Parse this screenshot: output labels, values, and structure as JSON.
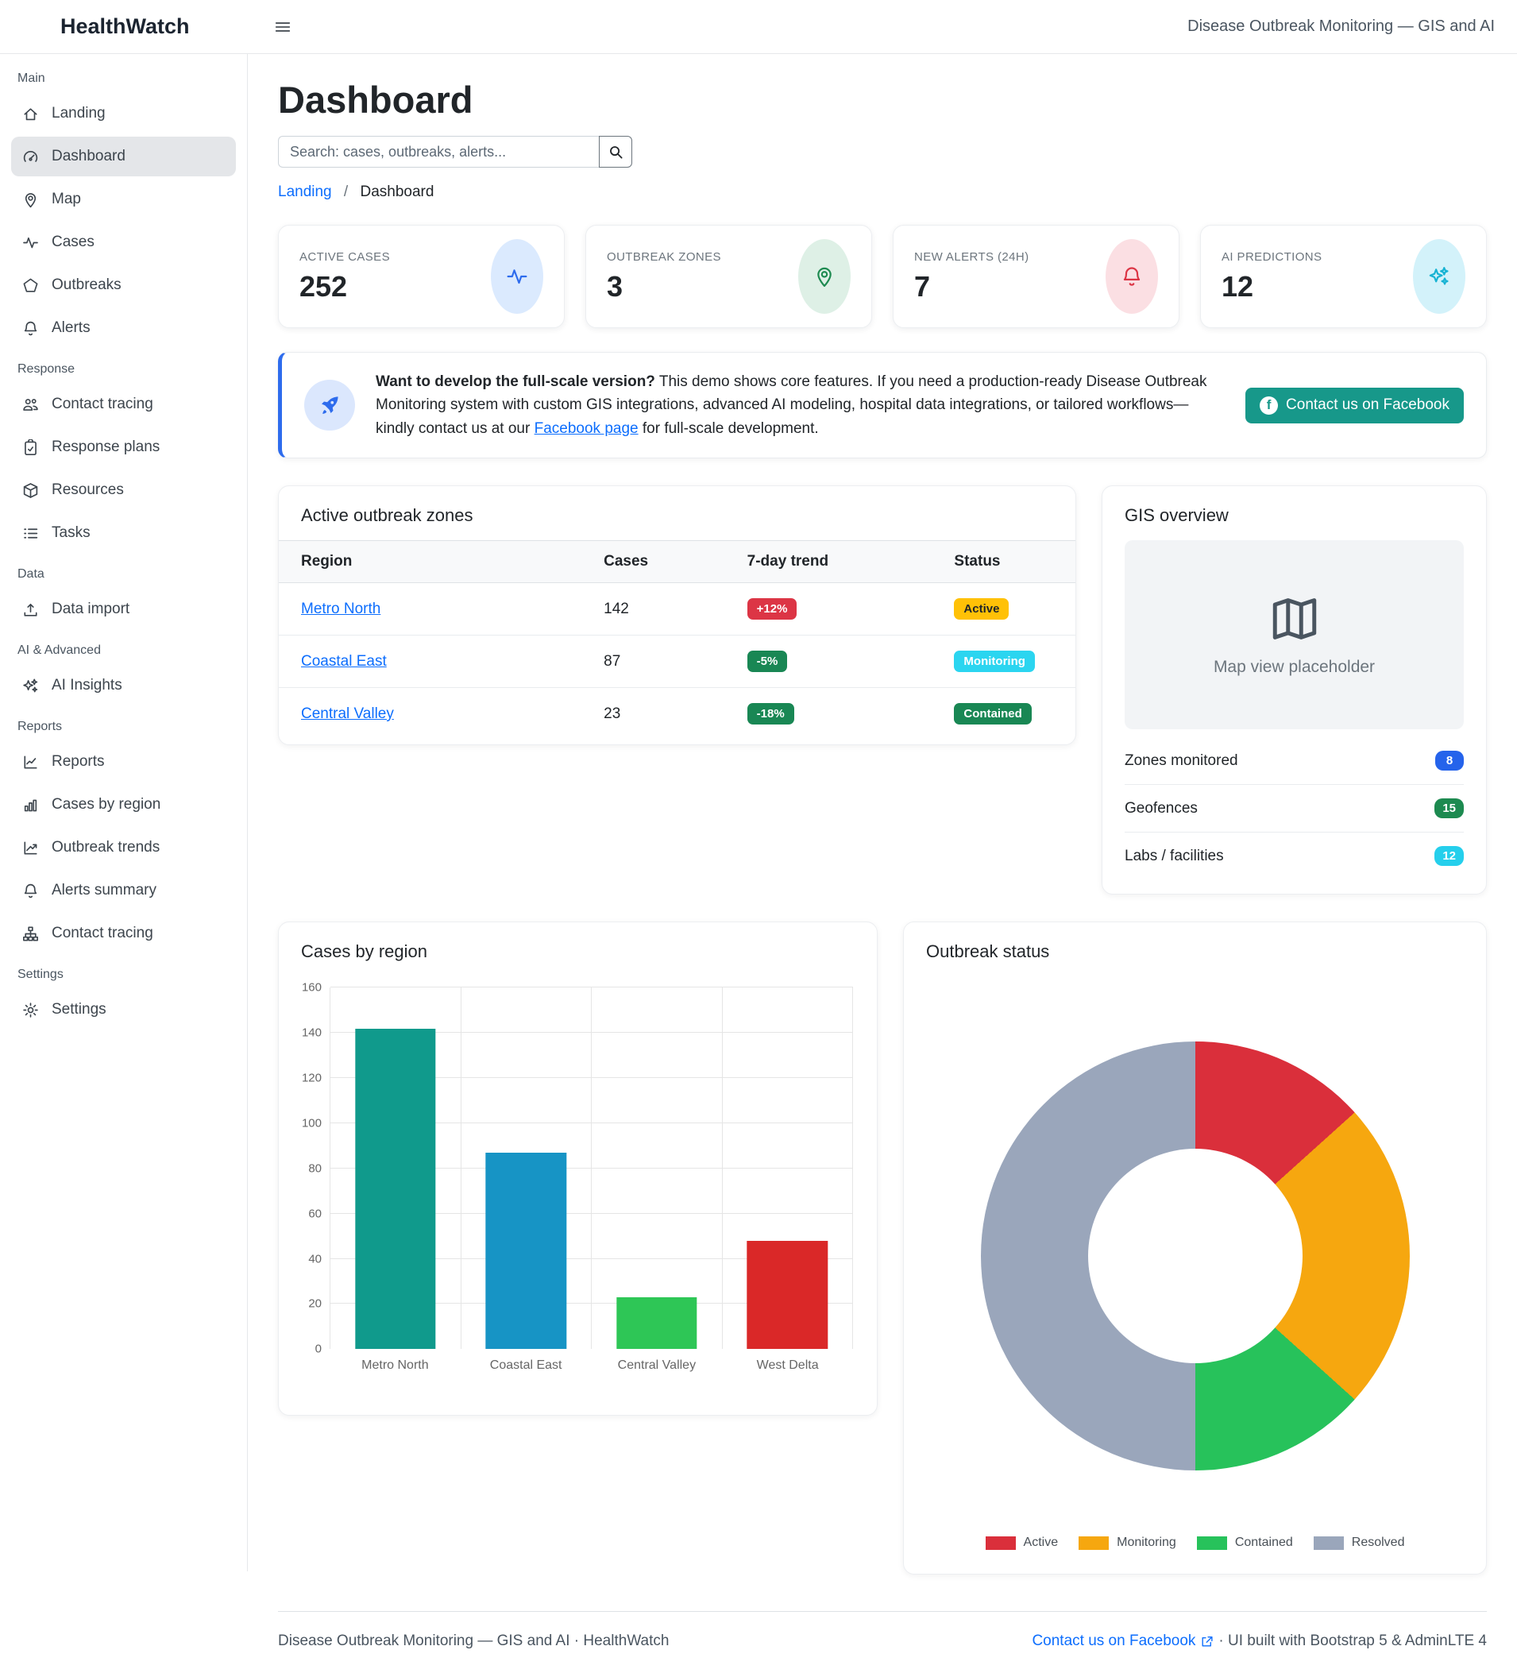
{
  "header": {
    "brand": "HealthWatch",
    "subtitle": "Disease Outbreak Monitoring — GIS and AI"
  },
  "page": {
    "title": "Dashboard",
    "search_placeholder": "Search: cases, outbreaks, alerts...",
    "breadcrumb_link": "Landing",
    "breadcrumb_sep": "/",
    "breadcrumb_current": "Dashboard"
  },
  "sidebar": {
    "sections": [
      {
        "label": "Main",
        "items": [
          {
            "label": "Landing",
            "icon": "house-icon",
            "active": false
          },
          {
            "label": "Dashboard",
            "icon": "speedometer-icon",
            "active": true
          },
          {
            "label": "Map",
            "icon": "geo-pin-icon",
            "active": false
          },
          {
            "label": "Cases",
            "icon": "activity-icon",
            "active": false
          },
          {
            "label": "Outbreaks",
            "icon": "pentagon-icon",
            "active": false
          },
          {
            "label": "Alerts",
            "icon": "bell-icon",
            "active": false
          }
        ]
      },
      {
        "label": "Response",
        "items": [
          {
            "label": "Contact tracing",
            "icon": "people-icon",
            "active": false
          },
          {
            "label": "Response plans",
            "icon": "clipboard-check-icon",
            "active": false
          },
          {
            "label": "Resources",
            "icon": "box-icon",
            "active": false
          },
          {
            "label": "Tasks",
            "icon": "list-check-icon",
            "active": false
          }
        ]
      },
      {
        "label": "Data",
        "items": [
          {
            "label": "Data import",
            "icon": "upload-icon",
            "active": false
          }
        ]
      },
      {
        "label": "AI & Advanced",
        "items": [
          {
            "label": "AI Insights",
            "icon": "sparkles-icon",
            "active": false
          }
        ]
      },
      {
        "label": "Reports",
        "items": [
          {
            "label": "Reports",
            "icon": "graph-icon",
            "active": false
          },
          {
            "label": "Cases by region",
            "icon": "bar-chart-icon",
            "active": false
          },
          {
            "label": "Outbreak trends",
            "icon": "trend-up-icon",
            "active": false
          },
          {
            "label": "Alerts summary",
            "icon": "bell-icon",
            "active": false
          },
          {
            "label": "Contact tracing",
            "icon": "diagram-icon",
            "active": false
          }
        ]
      },
      {
        "label": "Settings",
        "items": [
          {
            "label": "Settings",
            "icon": "gear-icon",
            "active": false
          }
        ]
      }
    ]
  },
  "stats": [
    {
      "label": "ACTIVE CASES",
      "value": "252",
      "icon": "activity-icon",
      "accent": "#2e6ced",
      "bubble": "#dbeafe"
    },
    {
      "label": "OUTBREAK ZONES",
      "value": "3",
      "icon": "geo-pin-icon",
      "accent": "#1d8a50",
      "bubble": "#def0e6"
    },
    {
      "label": "NEW ALERTS (24H)",
      "value": "7",
      "icon": "bell-icon",
      "accent": "#dc3545",
      "bubble": "#fbdfe3"
    },
    {
      "label": "AI PREDICTIONS",
      "value": "12",
      "icon": "sparkles-icon",
      "accent": "#17b3d3",
      "bubble": "#d3f2fa"
    }
  ],
  "banner": {
    "lead": "Want to develop the full-scale version?",
    "text1": " This demo shows core features. If you need a production-ready Disease Outbreak Monitoring system with custom GIS integrations, advanced AI modeling, hospital data integrations, or tailored workflows— kindly contact us at our ",
    "link_text": "Facebook page",
    "text2": " for full-scale development.",
    "button": "Contact us on Facebook",
    "button_color": "#17988a"
  },
  "zones_table": {
    "title": "Active outbreak zones",
    "columns": [
      "Region",
      "Cases",
      "7-day trend",
      "Status"
    ],
    "rows": [
      {
        "region": "Metro North",
        "cases": "142",
        "trend": "+12%",
        "trend_color": "#dc3545",
        "status": "Active",
        "status_color": "#ffc107",
        "status_text_color": "#212529"
      },
      {
        "region": "Coastal East",
        "cases": "87",
        "trend": "-5%",
        "trend_color": "#198754",
        "status": "Monitoring",
        "status_color": "#2bd5f0",
        "status_text_color": "#ffffff"
      },
      {
        "region": "Central Valley",
        "cases": "23",
        "trend": "-18%",
        "trend_color": "#198754",
        "status": "Contained",
        "status_color": "#198754",
        "status_text_color": "#ffffff"
      }
    ]
  },
  "gis": {
    "title": "GIS overview",
    "placeholder": "Map view placeholder",
    "items": [
      {
        "label": "Zones monitored",
        "value": "8",
        "color": "#2563eb"
      },
      {
        "label": "Geofences",
        "value": "15",
        "color": "#1d8a50"
      },
      {
        "label": "Labs / facilities",
        "value": "12",
        "color": "#25cfec"
      }
    ]
  },
  "chart_data": [
    {
      "type": "bar",
      "title": "Cases by region",
      "categories": [
        "Metro North",
        "Coastal East",
        "Central Valley",
        "West Delta"
      ],
      "values": [
        142,
        87,
        23,
        48
      ],
      "colors": [
        "#109a8c",
        "#1794c5",
        "#2ec656",
        "#da2828"
      ],
      "xlabel": "",
      "ylabel": "",
      "ylim": [
        0,
        160
      ],
      "ytick_step": 20,
      "grid": true,
      "legend_position": "none"
    },
    {
      "type": "pie",
      "title": "Outbreak status",
      "labels": [
        "Active",
        "Monitoring",
        "Contained",
        "Resolved"
      ],
      "values": [
        4,
        7,
        4,
        15
      ],
      "percentages": [
        13.3,
        23.3,
        13.3,
        50
      ],
      "colors": [
        "#da2f3b",
        "#f6a70f",
        "#27c25b",
        "#9aa6bb"
      ],
      "hole": 0.5,
      "legend_position": "bottom"
    }
  ],
  "footer": {
    "left": "Disease Outbreak Monitoring — GIS and AI · HealthWatch",
    "link": "Contact us on Facebook",
    "right": " · UI built with Bootstrap 5 & AdminLTE 4"
  }
}
